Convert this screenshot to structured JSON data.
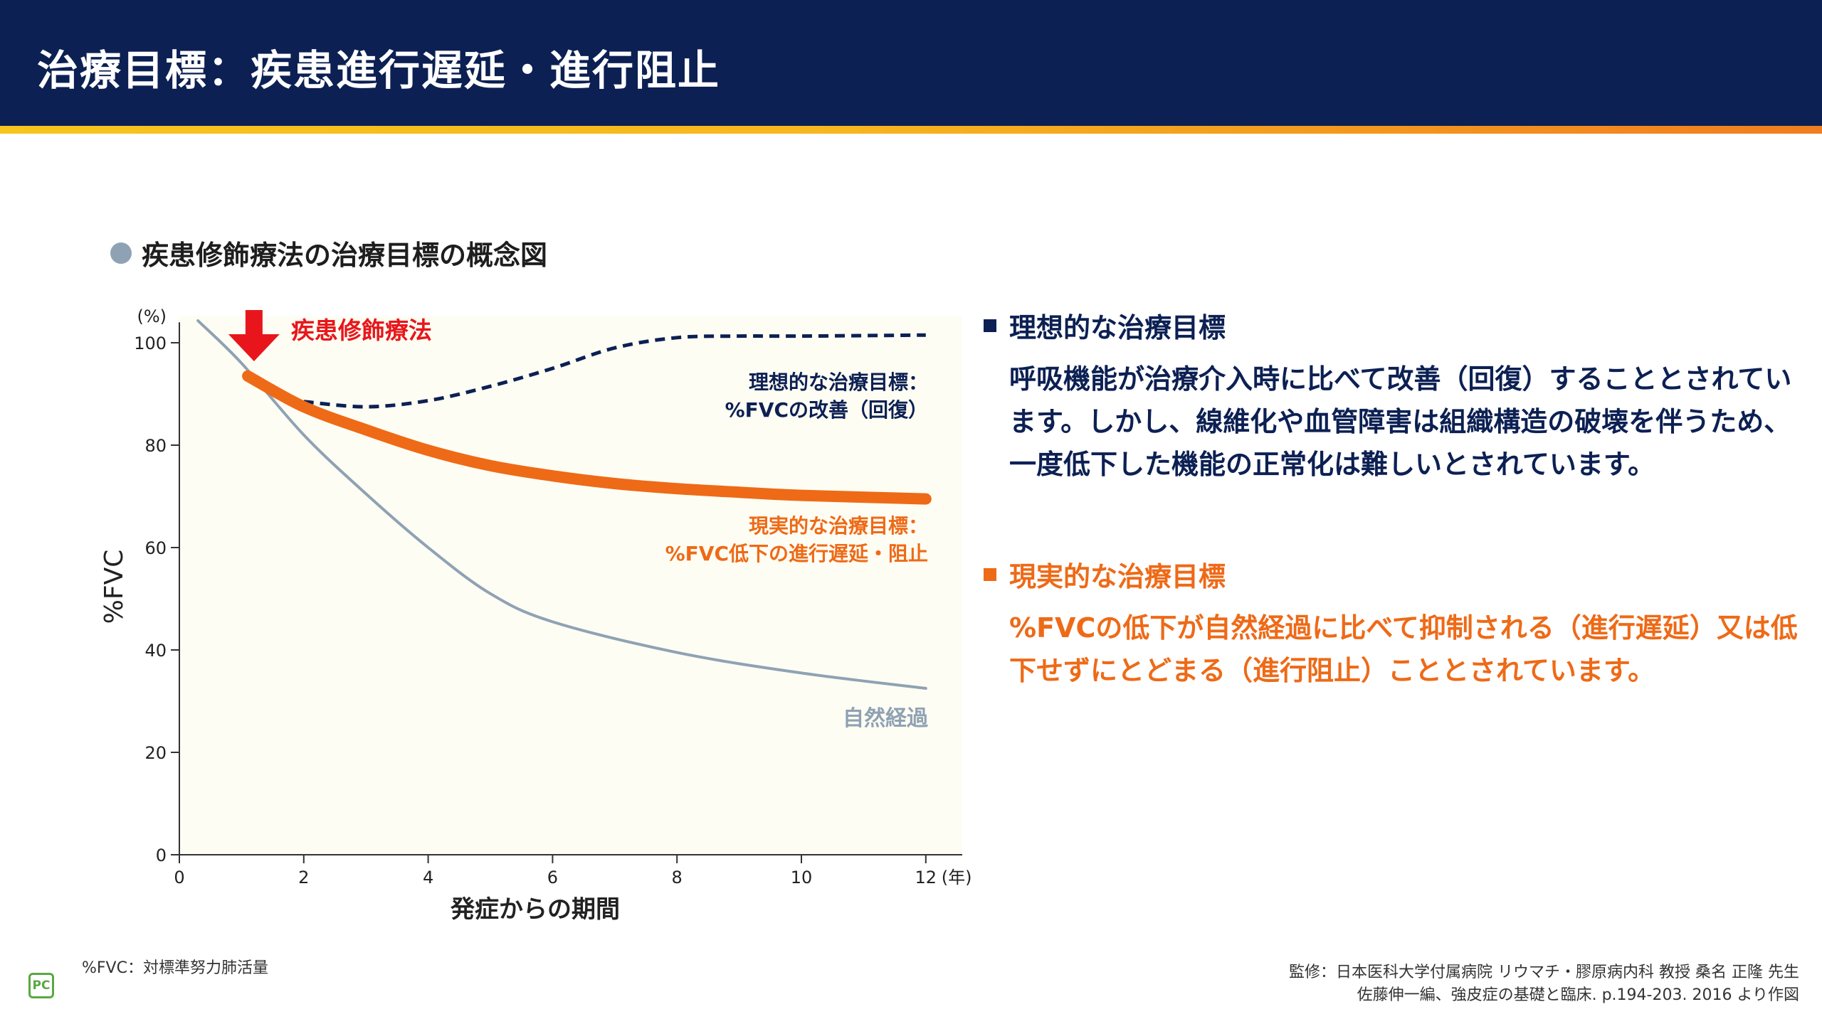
{
  "header": {
    "title": "治療目標：疾患進行遅延・進行阻止"
  },
  "section": {
    "title": "疾患修飾療法の治療目標の概念図"
  },
  "chart_data": {
    "type": "line",
    "title": "疾患修飾療法の治療目標の概念図",
    "xlabel": "発症からの期間",
    "ylabel": "%FVC",
    "x_unit": "(年)",
    "y_unit": "(%)",
    "xlim": [
      0,
      12.6
    ],
    "ylim": [
      0,
      104
    ],
    "x_ticks": [
      0,
      2,
      4,
      6,
      8,
      10,
      12
    ],
    "y_ticks": [
      0,
      20,
      40,
      60,
      80,
      100
    ],
    "intervention_label": "疾患修飾療法",
    "intervention_x": 1.2,
    "series": [
      {
        "name": "自然経過",
        "label": "自然経過",
        "color": "#8fa2b4",
        "points": [
          [
            0.3,
            104.3
          ],
          [
            1,
            96
          ],
          [
            2,
            82
          ],
          [
            3,
            70.5
          ],
          [
            4,
            60
          ],
          [
            5,
            51
          ],
          [
            6,
            45.5
          ],
          [
            8,
            39.5
          ],
          [
            10,
            35.5
          ],
          [
            12,
            32.5
          ]
        ]
      },
      {
        "name": "理想的な治療目標",
        "label_lines": [
          "理想的な治療目標：",
          "%FVCの改善（回復）"
        ],
        "color": "#0c2053",
        "points": [
          [
            2,
            88.5
          ],
          [
            3,
            87.5
          ],
          [
            4,
            88.7
          ],
          [
            5,
            91.5
          ],
          [
            6,
            95
          ],
          [
            7,
            99
          ],
          [
            8,
            101
          ],
          [
            9,
            101.3
          ],
          [
            10,
            101.3
          ],
          [
            12,
            101.5
          ]
        ]
      },
      {
        "name": "現実的な治療目標",
        "label_lines": [
          "現実的な治療目標：",
          "%FVC低下の進行遅延・阻止"
        ],
        "color": "#ee6a17",
        "points": [
          [
            1.1,
            93.5
          ],
          [
            2,
            87.5
          ],
          [
            3,
            83
          ],
          [
            4,
            79
          ],
          [
            5,
            76
          ],
          [
            6,
            74
          ],
          [
            7,
            72.5
          ],
          [
            8,
            71.5
          ],
          [
            9,
            70.8
          ],
          [
            10,
            70.2
          ],
          [
            12,
            69.5
          ]
        ]
      }
    ]
  },
  "explanations": {
    "ideal": {
      "heading": "理想的な治療目標",
      "body": "呼吸機能が治療介入時に比べて改善（回復）することとされています。しかし、線維化や血管障害は組織構造の破壊を伴うため、一度低下した機能の正常化は難しいとされています。"
    },
    "real": {
      "heading": "現実的な治療目標",
      "body": "%FVCの低下が自然経過に比べて抑制される（進行遅延）又は低下せずにとどまる（進行阻止）こととされています。"
    }
  },
  "footnote": "%FVC：対標準努力肺活量",
  "source": {
    "line1": "監修：日本医科大学付属病院 リウマチ・膠原病内科 教授 桑名 正隆 先生",
    "line2": "佐藤伸一編、強皮症の基礎と臨床. p.194-203. 2016 より作図"
  },
  "logo": {
    "text": "PC"
  },
  "colors": {
    "navy": "#0c2053",
    "orange": "#ee6a17",
    "gray_blue": "#8fa2b4",
    "red": "#e8161c",
    "plot_bg": "#fefdf3"
  }
}
